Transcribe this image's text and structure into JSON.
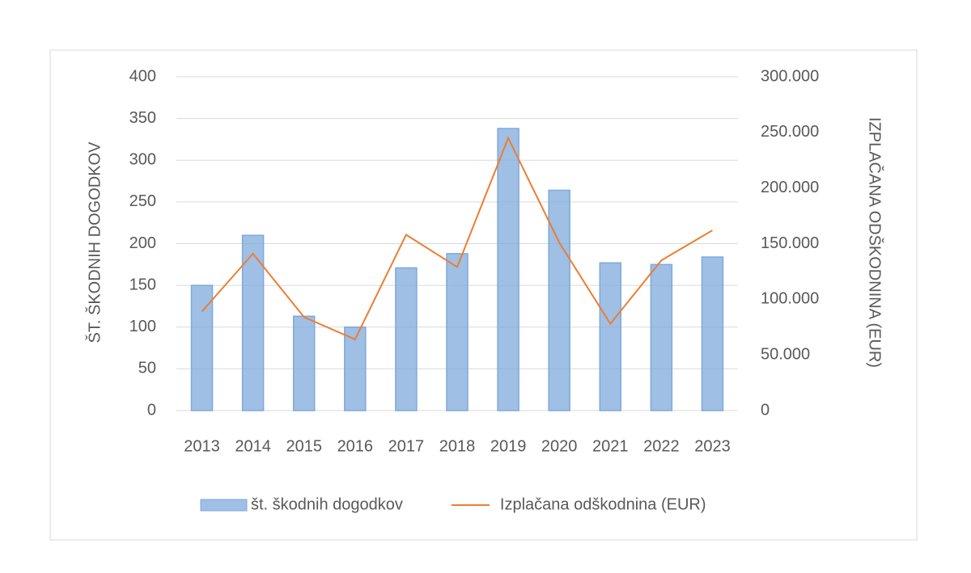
{
  "chart_data": {
    "type": "bar-line",
    "categories": [
      "2013",
      "2014",
      "2015",
      "2016",
      "2017",
      "2018",
      "2019",
      "2020",
      "2021",
      "2022",
      "2023"
    ],
    "series": [
      {
        "name": "št. škodnih dogodkov",
        "type": "bar",
        "color": "#7fa9dc",
        "values": [
          150,
          210,
          113,
          100,
          171,
          188,
          338,
          264,
          177,
          175,
          184
        ]
      },
      {
        "name": "Izplačana odškodnina (EUR)",
        "type": "line",
        "axis": "y2",
        "color": "#ed7d31",
        "values": [
          89000,
          141000,
          84000,
          64000,
          158000,
          129000,
          245000,
          151000,
          78000,
          135000,
          162000
        ]
      }
    ],
    "y_label": "ŠT. ŠKODNIH DOGODKOV",
    "y2_label": "IZPLAČANA ODŠKODNINA (EUR)",
    "ylim": [
      0,
      400
    ],
    "yticks": [
      0,
      50,
      100,
      150,
      200,
      250,
      300,
      350,
      400
    ],
    "y2lim": [
      0,
      300000
    ],
    "y2ticks": [
      0,
      {
        "value": 50000,
        "label": "50.000"
      },
      {
        "value": 100000,
        "label": "100.000"
      },
      {
        "value": 150000,
        "label": "150.000"
      },
      {
        "value": 200000,
        "label": "200.000"
      },
      {
        "value": 250000,
        "label": "250.000"
      },
      {
        "value": 300000,
        "label": "300.000"
      }
    ],
    "grid": true,
    "legend": "bottom"
  }
}
